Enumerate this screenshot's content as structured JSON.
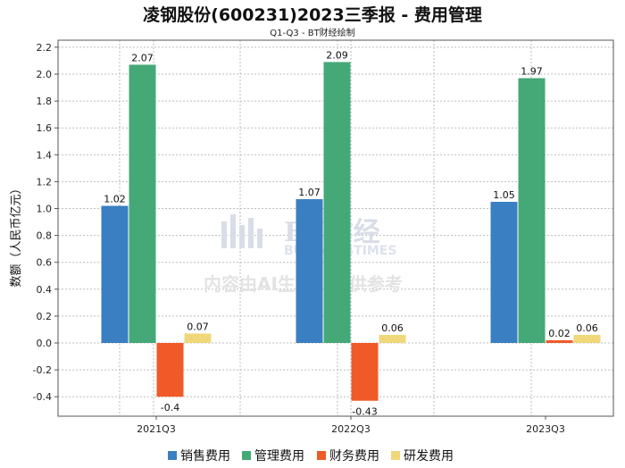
{
  "chart_data": {
    "type": "bar",
    "title": "凌钢股份(600231)2023三季报 - 费用管理",
    "subtitle": "Q1-Q3 - BT财经绘制",
    "ylabel": "数额（人民币亿元）",
    "xlabel": "",
    "categories": [
      "2021Q3",
      "2022Q3",
      "2023Q3"
    ],
    "ylim": [
      -0.5,
      2.2
    ],
    "yticks": [
      -0.4,
      -0.2,
      0.0,
      0.2,
      0.4,
      0.6,
      0.8,
      1.0,
      1.2,
      1.4,
      1.6,
      1.8,
      2.0,
      2.2
    ],
    "grid": true,
    "legend_position": "bottom",
    "series": [
      {
        "name": "销售费用",
        "color": "#3a7fc1",
        "values": [
          1.02,
          1.07,
          1.05
        ]
      },
      {
        "name": "管理费用",
        "color": "#45a877",
        "values": [
          2.07,
          2.09,
          1.97
        ]
      },
      {
        "name": "财务费用",
        "color": "#f05a28",
        "values": [
          -0.4,
          -0.43,
          0.02
        ]
      },
      {
        "name": "研发费用",
        "color": "#f0d87a",
        "values": [
          0.07,
          0.06,
          0.06
        ]
      }
    ]
  },
  "watermark": {
    "brand": "BT财经",
    "brand_en": "BUSINESSTIMES",
    "note": "内容由AI生成，仅供参考"
  }
}
